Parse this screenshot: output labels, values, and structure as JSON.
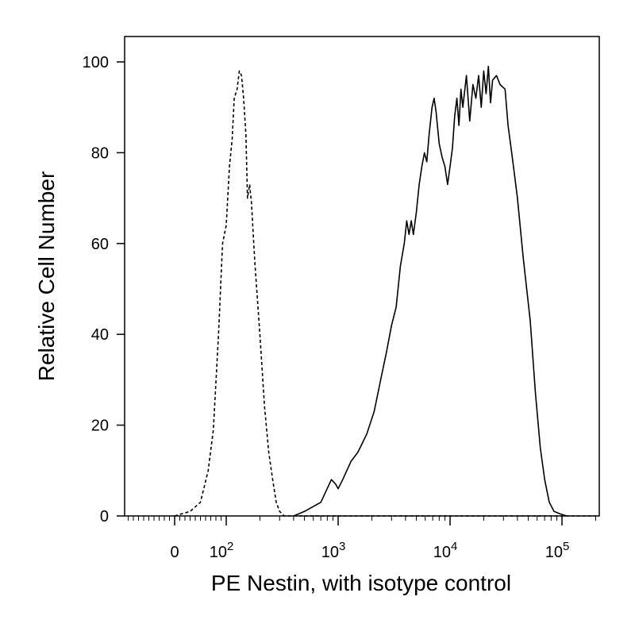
{
  "chart_data": {
    "type": "line",
    "title": "",
    "xlabel": "PE Nestin, with isotype control",
    "ylabel": "Relative Cell Number",
    "x_scale": "biexponential",
    "xlim": [
      -300,
      250000
    ],
    "ylim": [
      0,
      100
    ],
    "y_ticks": [
      0,
      20,
      40,
      60,
      80,
      100
    ],
    "x_ticks": [
      {
        "value": 0,
        "label": "0",
        "exp": ""
      },
      {
        "value": 100,
        "label": "10",
        "exp": "2"
      },
      {
        "value": 1000,
        "label": "10",
        "exp": "3"
      },
      {
        "value": 10000,
        "label": "10",
        "exp": "4"
      },
      {
        "value": 100000,
        "label": "10",
        "exp": "5"
      }
    ],
    "grid": false,
    "series": [
      {
        "style": "dashed",
        "points": [
          [
            0,
            0
          ],
          [
            30,
            1
          ],
          [
            50,
            3
          ],
          [
            65,
            10
          ],
          [
            75,
            19
          ],
          [
            85,
            40
          ],
          [
            93,
            60
          ],
          [
            100,
            64
          ],
          [
            107,
            77
          ],
          [
            113,
            83
          ],
          [
            118,
            92
          ],
          [
            125,
            94
          ],
          [
            131,
            98
          ],
          [
            137,
            97
          ],
          [
            143,
            92
          ],
          [
            150,
            84
          ],
          [
            155,
            70
          ],
          [
            162,
            73
          ],
          [
            168,
            69
          ],
          [
            180,
            56
          ],
          [
            200,
            40
          ],
          [
            220,
            24
          ],
          [
            240,
            14
          ],
          [
            260,
            8
          ],
          [
            280,
            3
          ],
          [
            300,
            1
          ],
          [
            330,
            0
          ],
          [
            400,
            0
          ],
          [
            1000,
            0
          ],
          [
            10000,
            0
          ],
          [
            100000,
            0
          ],
          [
            200000,
            0
          ]
        ]
      },
      {
        "style": "solid",
        "points": [
          [
            400,
            0
          ],
          [
            500,
            1
          ],
          [
            700,
            3
          ],
          [
            870,
            8
          ],
          [
            950,
            7
          ],
          [
            1000,
            6
          ],
          [
            1100,
            8
          ],
          [
            1300,
            12
          ],
          [
            1500,
            14
          ],
          [
            1800,
            18
          ],
          [
            2100,
            23
          ],
          [
            2400,
            30
          ],
          [
            2700,
            36
          ],
          [
            3000,
            42
          ],
          [
            3300,
            46
          ],
          [
            3600,
            55
          ],
          [
            3900,
            60
          ],
          [
            4100,
            65
          ],
          [
            4300,
            62
          ],
          [
            4500,
            65
          ],
          [
            4700,
            62
          ],
          [
            5000,
            67
          ],
          [
            5300,
            73
          ],
          [
            5600,
            77
          ],
          [
            5900,
            80
          ],
          [
            6200,
            78
          ],
          [
            6500,
            84
          ],
          [
            6900,
            90
          ],
          [
            7200,
            92
          ],
          [
            7500,
            89
          ],
          [
            8000,
            82
          ],
          [
            8500,
            79
          ],
          [
            9000,
            77
          ],
          [
            9500,
            73
          ],
          [
            10000,
            77
          ],
          [
            10500,
            81
          ],
          [
            11000,
            88
          ],
          [
            11500,
            92
          ],
          [
            12000,
            86
          ],
          [
            12500,
            94
          ],
          [
            13000,
            90
          ],
          [
            14000,
            97
          ],
          [
            15000,
            87
          ],
          [
            16000,
            95
          ],
          [
            17000,
            92
          ],
          [
            18000,
            97
          ],
          [
            19000,
            90
          ],
          [
            20000,
            98
          ],
          [
            21000,
            93
          ],
          [
            22000,
            99
          ],
          [
            23000,
            91
          ],
          [
            24000,
            96
          ],
          [
            26000,
            97
          ],
          [
            28000,
            95
          ],
          [
            31000,
            94
          ],
          [
            33000,
            86
          ],
          [
            36000,
            79
          ],
          [
            40000,
            70
          ],
          [
            45000,
            57
          ],
          [
            52000,
            43
          ],
          [
            58000,
            27
          ],
          [
            64000,
            15
          ],
          [
            70000,
            8
          ],
          [
            77000,
            3
          ],
          [
            85000,
            1
          ],
          [
            95000,
            0.5
          ],
          [
            110000,
            0
          ]
        ]
      }
    ]
  }
}
